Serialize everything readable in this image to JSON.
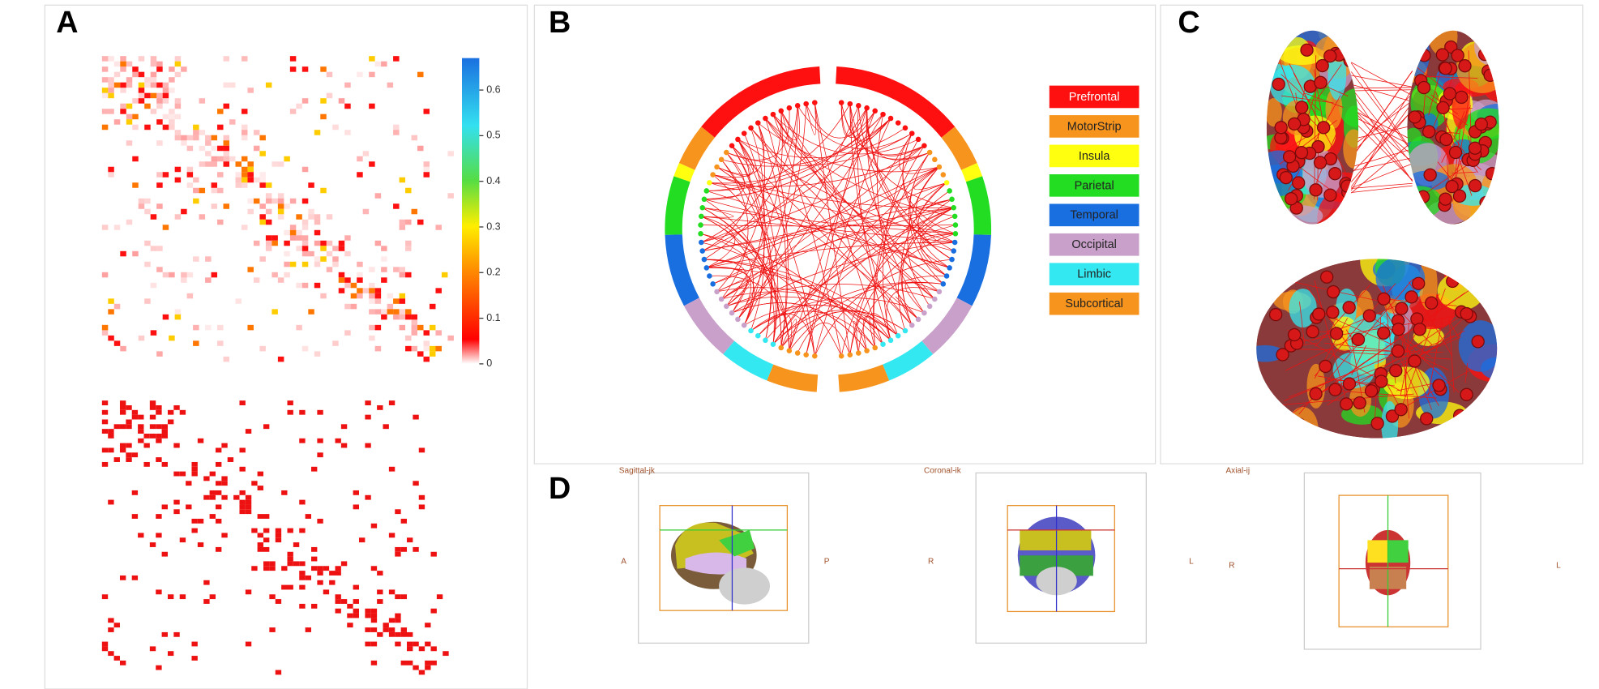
{
  "panels": {
    "a": "A",
    "b": "B",
    "c": "C",
    "d": "D"
  },
  "colorbar": {
    "lim": [
      0,
      0.67
    ],
    "ticks": [
      0,
      0.1,
      0.2,
      0.3,
      0.4,
      0.5,
      0.6
    ]
  },
  "legend": {
    "labels": [
      "Prefrontal",
      "MotorStrip",
      "Insula",
      "Parietal",
      "Temporal",
      "Occipital",
      "Limbic",
      "Subcortical"
    ],
    "colors": [
      "#ff1010",
      "#f7941d",
      "#ffff10",
      "#22dd22",
      "#1a6fe0",
      "#c9a0c9",
      "#33e8f0",
      "#f7941d"
    ]
  },
  "views": [
    {
      "title": "Sagittal-jk",
      "left": "A",
      "right": "P"
    },
    {
      "title": "Coronal-ik",
      "left": "R",
      "right": "L"
    },
    {
      "title": "Axial-ij",
      "left": "R",
      "right": "L"
    }
  ]
}
